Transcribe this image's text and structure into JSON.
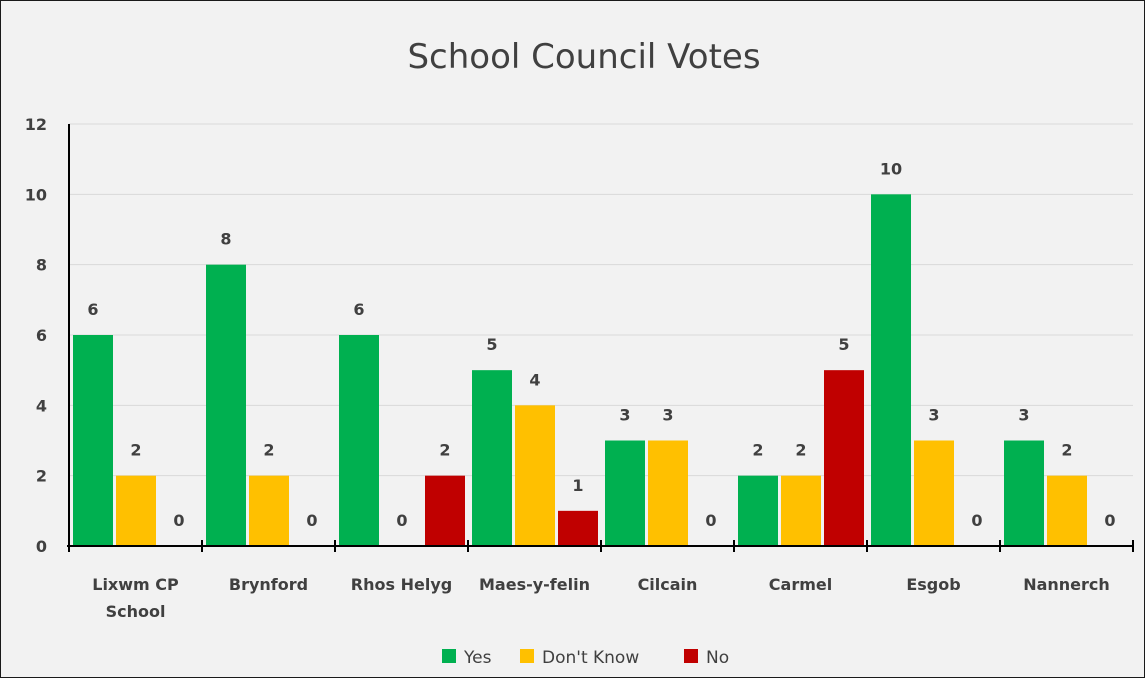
{
  "chart_data": {
    "type": "bar",
    "title": "School Council Votes",
    "xlabel": "",
    "ylabel": "",
    "categories": [
      [
        "Lixwm CP",
        "School"
      ],
      [
        "Brynford"
      ],
      [
        "Rhos Helyg"
      ],
      [
        "Maes-y-felin"
      ],
      [
        "Cilcain"
      ],
      [
        "Carmel"
      ],
      [
        "Esgob"
      ],
      [
        "Nannerch"
      ]
    ],
    "series": [
      {
        "name": "Yes",
        "color": "#00b050",
        "values": [
          6,
          8,
          6,
          5,
          3,
          2,
          10,
          3
        ]
      },
      {
        "name": "Don't Know",
        "color": "#ffc000",
        "values": [
          2,
          2,
          0,
          4,
          3,
          2,
          3,
          2
        ]
      },
      {
        "name": "No",
        "color": "#c00000",
        "values": [
          0,
          0,
          2,
          1,
          0,
          5,
          0,
          0
        ]
      }
    ],
    "ylim": [
      0,
      12
    ],
    "yticks": [
      0,
      2,
      4,
      6,
      8,
      10,
      12
    ],
    "grid": true,
    "data_labels": true,
    "legend_position": "bottom"
  }
}
